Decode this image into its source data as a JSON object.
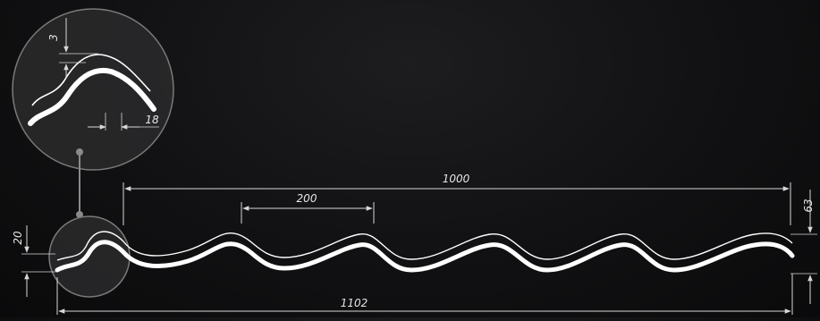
{
  "dimensions": {
    "pitch": "200",
    "cover_width": "1000",
    "total_width": "1102",
    "height": "63",
    "edge_height": "20",
    "detail_thickness": "3",
    "detail_offset": "18"
  },
  "colors": {
    "background": "#111113",
    "profile": "#ffffff",
    "dimension_line": "#d8d8d8",
    "callout": "#8a8a8a"
  }
}
